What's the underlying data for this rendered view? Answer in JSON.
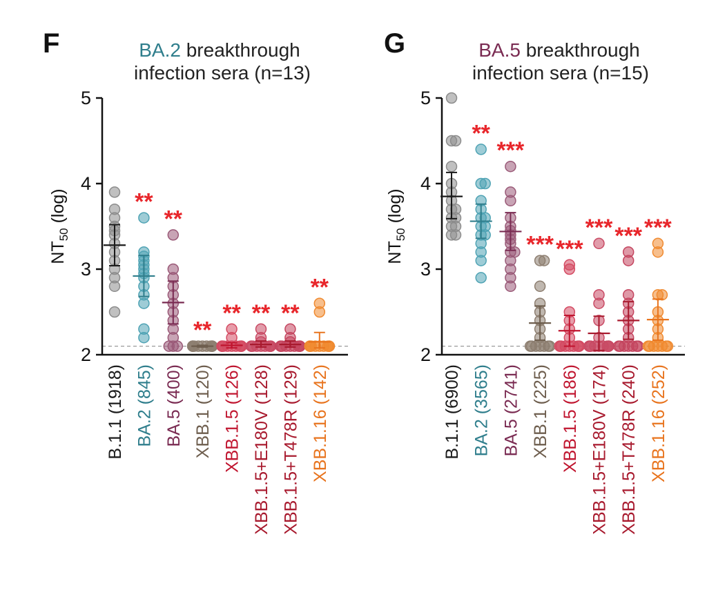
{
  "chart_data": [
    {
      "type": "scatter",
      "panel": "F",
      "title_colored": "BA.2",
      "title_rest": " breakthrough",
      "title_line2": "infection sera (n=13)",
      "title_color": "#2f7e8c",
      "ylabel_main": "NT",
      "ylabel_sub": "50",
      "ylabel_unit": " (log)",
      "ylim": [
        2,
        5
      ],
      "yticks": [
        "2",
        "3",
        "4",
        "5"
      ],
      "detection_limit": 2.1,
      "groups": [
        {
          "name": "B.1.1",
          "titer": "(1918)",
          "color": "#8c8c8c",
          "label_color": "#1a1a1a",
          "mean": 3.28,
          "ci": [
            3.04,
            3.52
          ],
          "sig": "",
          "values": [
            3.9,
            3.7,
            3.6,
            3.5,
            3.45,
            3.4,
            3.3,
            3.2,
            3.1,
            3.0,
            2.9,
            2.8,
            2.5
          ]
        },
        {
          "name": "BA.2",
          "titer": "(845)",
          "color": "#4fa3b4",
          "label_color": "#2f7e8c",
          "mean": 2.92,
          "ci": [
            2.68,
            3.16
          ],
          "sig": "**",
          "values": [
            3.6,
            3.2,
            3.15,
            3.1,
            3.05,
            3.0,
            2.95,
            2.9,
            2.8,
            2.7,
            2.6,
            2.3,
            2.2
          ]
        },
        {
          "name": "BA.5",
          "titer": "(400)",
          "color": "#9a5a78",
          "label_color": "#7a2b52",
          "mean": 2.61,
          "ci": [
            2.36,
            2.86
          ],
          "sig": "**",
          "values": [
            3.4,
            3.0,
            2.9,
            2.8,
            2.7,
            2.6,
            2.5,
            2.4,
            2.3,
            2.2,
            2.1,
            2.1,
            2.1
          ]
        },
        {
          "name": "XBB.1",
          "titer": "(120)",
          "color": "#8d7e70",
          "label_color": "#6e5e4e",
          "mean": 2.1,
          "ci": [
            2.09,
            2.11
          ],
          "sig": "**",
          "values": [
            2.1,
            2.1,
            2.1,
            2.1,
            2.1,
            2.1,
            2.1,
            2.1,
            2.1,
            2.1,
            2.1,
            2.1,
            2.1
          ]
        },
        {
          "name": "XBB.1.5",
          "titer": "(126)",
          "color": "#d44a62",
          "label_color": "#c0152f",
          "mean": 2.11,
          "ci": [
            2.08,
            2.14
          ],
          "sig": "**",
          "values": [
            2.3,
            2.2,
            2.1,
            2.1,
            2.1,
            2.1,
            2.1,
            2.1,
            2.1,
            2.1,
            2.1,
            2.1,
            2.1
          ]
        },
        {
          "name": "XBB.1.5+E180V",
          "titer": "(128)",
          "color": "#c94a64",
          "label_color": "#a81a2e",
          "mean": 2.12,
          "ci": [
            2.09,
            2.16
          ],
          "sig": "**",
          "values": [
            2.3,
            2.2,
            2.15,
            2.1,
            2.1,
            2.1,
            2.1,
            2.1,
            2.1,
            2.1,
            2.1,
            2.1,
            2.1
          ]
        },
        {
          "name": "XBB.1.5+T478R",
          "titer": "(129)",
          "color": "#c4455f",
          "label_color": "#a81a2e",
          "mean": 2.12,
          "ci": [
            2.09,
            2.16
          ],
          "sig": "**",
          "values": [
            2.3,
            2.2,
            2.15,
            2.1,
            2.1,
            2.1,
            2.1,
            2.1,
            2.1,
            2.1,
            2.1,
            2.1,
            2.1
          ]
        },
        {
          "name": "XBB.1.16",
          "titer": "(142)",
          "color": "#f08a30",
          "label_color": "#e8741e",
          "mean": 2.15,
          "ci": [
            2.08,
            2.26
          ],
          "sig": "**",
          "values": [
            2.6,
            2.5,
            2.1,
            2.1,
            2.1,
            2.1,
            2.1,
            2.1,
            2.1,
            2.1,
            2.1,
            2.1,
            2.1
          ]
        }
      ]
    },
    {
      "type": "scatter",
      "panel": "G",
      "title_colored": "BA.5",
      "title_rest": " breakthrough",
      "title_line2": "infection sera (n=15)",
      "title_color": "#7a2b52",
      "ylabel_main": "NT",
      "ylabel_sub": "50",
      "ylabel_unit": " (log)",
      "ylim": [
        2,
        5
      ],
      "yticks": [
        "2",
        "3",
        "4",
        "5"
      ],
      "detection_limit": 2.1,
      "groups": [
        {
          "name": "B.1.1",
          "titer": "(6900)",
          "color": "#8c8c8c",
          "label_color": "#1a1a1a",
          "mean": 3.85,
          "ci": [
            3.59,
            4.13
          ],
          "sig": "",
          "values": [
            5.0,
            4.5,
            4.5,
            4.2,
            4.0,
            3.9,
            3.8,
            3.7,
            3.7,
            3.6,
            3.6,
            3.5,
            3.5,
            3.4,
            3.4
          ]
        },
        {
          "name": "BA.2",
          "titer": "(3565)",
          "color": "#4fa3b4",
          "label_color": "#2f7e8c",
          "mean": 3.56,
          "ci": [
            3.36,
            3.76
          ],
          "sig": "**",
          "values": [
            4.4,
            4.0,
            4.0,
            3.8,
            3.7,
            3.6,
            3.6,
            3.5,
            3.5,
            3.4,
            3.4,
            3.3,
            3.2,
            3.1,
            2.9
          ]
        },
        {
          "name": "BA.5",
          "titer": "(2741)",
          "color": "#9a5a78",
          "label_color": "#7a2b52",
          "mean": 3.44,
          "ci": [
            3.22,
            3.66
          ],
          "sig": "***",
          "values": [
            4.2,
            3.9,
            3.8,
            3.6,
            3.5,
            3.45,
            3.4,
            3.35,
            3.3,
            3.2,
            3.2,
            3.1,
            3.0,
            2.9,
            2.8
          ]
        },
        {
          "name": "XBB.1",
          "titer": "(225)",
          "color": "#8d7e70",
          "label_color": "#6e5e4e",
          "mean": 2.37,
          "ci": [
            2.17,
            2.57
          ],
          "sig": "***",
          "values": [
            3.1,
            3.1,
            2.8,
            2.6,
            2.5,
            2.4,
            2.3,
            2.2,
            2.1,
            2.1,
            2.1,
            2.1,
            2.1,
            2.1,
            2.1
          ]
        },
        {
          "name": "XBB.1.5",
          "titer": "(186)",
          "color": "#d44a62",
          "label_color": "#c0152f",
          "mean": 2.28,
          "ci": [
            2.1,
            2.46
          ],
          "sig": "***",
          "values": [
            3.05,
            3.0,
            2.5,
            2.4,
            2.3,
            2.2,
            2.1,
            2.1,
            2.1,
            2.1,
            2.1,
            2.1,
            2.1,
            2.1,
            2.1
          ]
        },
        {
          "name": "XBB.1.5+E180V",
          "titer": "(174)",
          "color": "#c94a64",
          "label_color": "#a81a2e",
          "mean": 2.25,
          "ci": [
            2.05,
            2.45
          ],
          "sig": "***",
          "values": [
            3.3,
            2.7,
            2.6,
            2.4,
            2.2,
            2.1,
            2.1,
            2.1,
            2.1,
            2.1,
            2.1,
            2.1,
            2.1,
            2.1,
            2.1
          ]
        },
        {
          "name": "XBB.1.5+T478R",
          "titer": "(240)",
          "color": "#c4455f",
          "label_color": "#a81a2e",
          "mean": 2.4,
          "ci": [
            2.18,
            2.62
          ],
          "sig": "***",
          "values": [
            3.2,
            3.1,
            2.7,
            2.6,
            2.5,
            2.4,
            2.3,
            2.2,
            2.1,
            2.1,
            2.1,
            2.1,
            2.1,
            2.1,
            2.1
          ]
        },
        {
          "name": "XBB.1.16",
          "titer": "(252)",
          "color": "#f08a30",
          "label_color": "#e8741e",
          "mean": 2.41,
          "ci": [
            2.17,
            2.65
          ],
          "sig": "***",
          "values": [
            3.3,
            3.2,
            2.7,
            2.7,
            2.5,
            2.4,
            2.3,
            2.2,
            2.1,
            2.1,
            2.1,
            2.1,
            2.1,
            2.1,
            2.1
          ]
        }
      ]
    }
  ]
}
